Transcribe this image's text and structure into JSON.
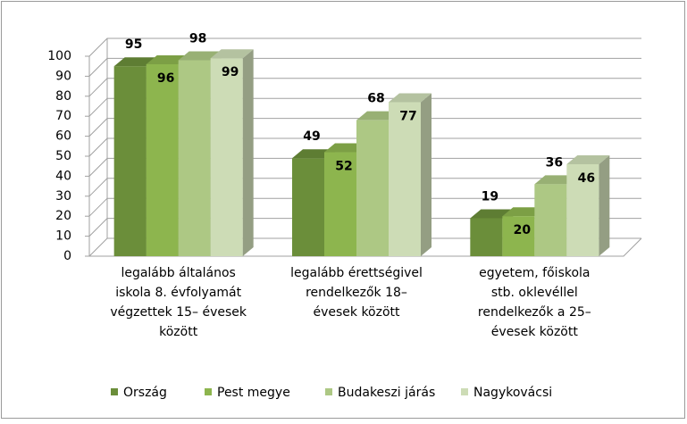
{
  "chart_data": {
    "type": "bar3d",
    "categories": [
      [
        "legalább általános",
        "iskola 8. évfolyamát",
        "végzettek  15– évesek",
        "között"
      ],
      [
        "legalább érettségivel",
        "rendelkezők 18–",
        "évesek között"
      ],
      [
        "egyetem,  főiskola",
        "stb. oklevéllel",
        "rendelkezők a 25–",
        "évesek között"
      ]
    ],
    "series": [
      {
        "name": "Ország",
        "color": "#6b8e3a",
        "values": [
          95,
          49,
          19
        ]
      },
      {
        "name": "Pest megye",
        "color": "#8db54e",
        "values": [
          96,
          52,
          20
        ]
      },
      {
        "name": "Budakeszi járás",
        "color": "#adc884",
        "values": [
          98,
          68,
          36
        ]
      },
      {
        "name": "Nagykovácsi",
        "color": "#cddcb6",
        "values": [
          99,
          77,
          46
        ]
      }
    ],
    "ylim": [
      0,
      100
    ],
    "yticks": [
      0,
      10,
      20,
      30,
      40,
      50,
      60,
      70,
      80,
      90,
      100
    ],
    "grid": true
  }
}
